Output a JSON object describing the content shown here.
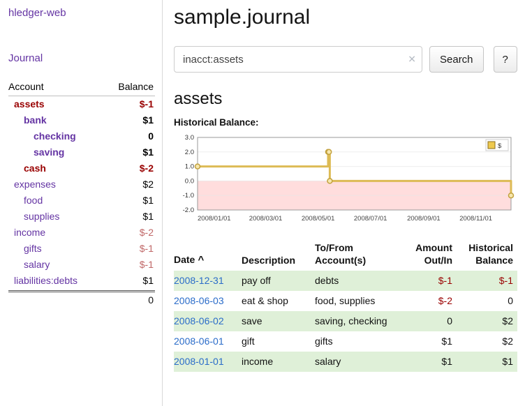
{
  "app": {
    "title": "hledger-web",
    "nav_journal": "Journal"
  },
  "colors": {
    "purple_link": "#6434a3",
    "maroon": "#990000",
    "muted_red": "#c06868",
    "blue_link": "#2a6cc9",
    "row_green": "#dff0d8"
  },
  "sidebar": {
    "col_account": "Account",
    "col_balance": "Balance",
    "accounts": [
      {
        "name": "assets",
        "balance": "$-1",
        "depth": 0,
        "bold": true,
        "name_color": "maroon",
        "balance_color": "maroon"
      },
      {
        "name": "bank",
        "balance": "$1",
        "depth": 1,
        "bold": true,
        "name_color": "purple",
        "balance_color": "dark"
      },
      {
        "name": "checking",
        "balance": "0",
        "depth": 2,
        "bold": true,
        "name_color": "purple",
        "balance_color": "dark"
      },
      {
        "name": "saving",
        "balance": "$1",
        "depth": 2,
        "bold": true,
        "name_color": "purple",
        "balance_color": "dark"
      },
      {
        "name": "cash",
        "balance": "$-2",
        "depth": 1,
        "bold": true,
        "name_color": "maroon",
        "balance_color": "maroon"
      },
      {
        "name": "expenses",
        "balance": "$2",
        "depth": 0,
        "bold": false,
        "name_color": "purple",
        "balance_color": "dark"
      },
      {
        "name": "food",
        "balance": "$1",
        "depth": 1,
        "bold": false,
        "name_color": "purple",
        "balance_color": "dark"
      },
      {
        "name": "supplies",
        "balance": "$1",
        "depth": 1,
        "bold": false,
        "name_color": "purple",
        "balance_color": "dark"
      },
      {
        "name": "income",
        "balance": "$-2",
        "depth": 0,
        "bold": false,
        "name_color": "purple",
        "balance_color": "muted"
      },
      {
        "name": "gifts",
        "balance": "$-1",
        "depth": 1,
        "bold": false,
        "name_color": "purple",
        "balance_color": "muted"
      },
      {
        "name": "salary",
        "balance": "$-1",
        "depth": 1,
        "bold": false,
        "name_color": "purple",
        "balance_color": "muted"
      },
      {
        "name": "liabilities:debts",
        "balance": "$1",
        "depth": 0,
        "bold": false,
        "name_color": "purple",
        "balance_color": "dark"
      }
    ],
    "total": "0"
  },
  "main": {
    "title": "sample.journal",
    "search": {
      "value": "inacct:assets",
      "clear_icon": "✕",
      "button": "Search",
      "help": "?"
    },
    "account_heading": "assets",
    "chart_title": "Historical Balance:"
  },
  "chart_data": {
    "type": "line",
    "step": true,
    "title": "Historical Balance:",
    "x_start": "2008-01-01",
    "x_end": "2008-12-31",
    "series": [
      {
        "name": "$",
        "points": [
          [
            "2008-01-01",
            1
          ],
          [
            "2008-06-01",
            2
          ],
          [
            "2008-06-02",
            2
          ],
          [
            "2008-06-03",
            0
          ],
          [
            "2008-12-31",
            -1
          ]
        ]
      }
    ],
    "ylim": [
      -2.0,
      3.0
    ],
    "yticks": [
      3.0,
      2.0,
      1.0,
      0.0,
      -1.0,
      -2.0
    ],
    "xticks": [
      "2008/01/01",
      "2008/03/01",
      "2008/05/01",
      "2008/07/01",
      "2008/09/01",
      "2008/11/01"
    ],
    "legend": {
      "label": "$",
      "position": "top-right"
    },
    "colors": {
      "line": "#ddbb55",
      "marker_fill": "#f7e7ae",
      "marker_stroke": "#c2a13e",
      "negative_region": "#ffdddd",
      "legend_swatch": "#eec94e",
      "plot_border": "#999999",
      "grid": "#e6e6e6"
    }
  },
  "register": {
    "headers": [
      {
        "key": "date",
        "l1": "Date",
        "sort": "^",
        "sortable": true
      },
      {
        "key": "description",
        "l1": "Description"
      },
      {
        "key": "accounts",
        "l1": "To/From",
        "l2": "Account(s)"
      },
      {
        "key": "amount",
        "l1": "Amount",
        "l2": "Out/In",
        "align": "right"
      },
      {
        "key": "balance",
        "l1": "Historical",
        "l2": "Balance",
        "align": "right"
      }
    ],
    "rows": [
      {
        "date": "2008-12-31",
        "desc": "pay off",
        "accounts": "debts",
        "amount": "$-1",
        "amount_neg": true,
        "balance": "$-1",
        "balance_neg": true,
        "shade": true
      },
      {
        "date": "2008-06-03",
        "desc": "eat & shop",
        "accounts": "food, supplies",
        "amount": "$-2",
        "amount_neg": true,
        "balance": "0",
        "balance_neg": false,
        "shade": false
      },
      {
        "date": "2008-06-02",
        "desc": "save",
        "accounts": "saving, checking",
        "amount": "0",
        "amount_neg": false,
        "balance": "$2",
        "balance_neg": false,
        "shade": true
      },
      {
        "date": "2008-06-01",
        "desc": "gift",
        "accounts": "gifts",
        "amount": "$1",
        "amount_neg": false,
        "balance": "$2",
        "balance_neg": false,
        "shade": false
      },
      {
        "date": "2008-01-01",
        "desc": "income",
        "accounts": "salary",
        "amount": "$1",
        "amount_neg": false,
        "balance": "$1",
        "balance_neg": false,
        "shade": true
      }
    ]
  }
}
